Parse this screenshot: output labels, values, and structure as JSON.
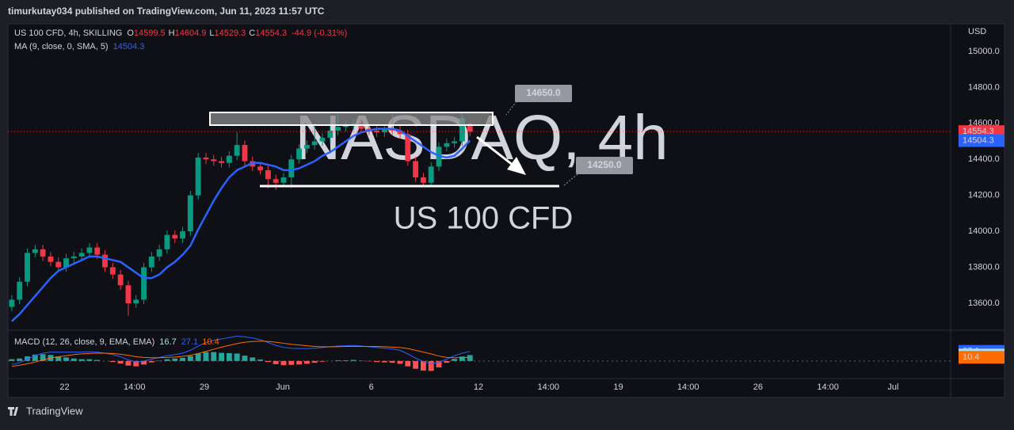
{
  "header": {
    "title": "timurkutay034 published on TradingView.com, Jun 11, 2023 11:57 UTC"
  },
  "footer": {
    "brand": "TradingView"
  },
  "chart_data": {
    "type": "candlestick",
    "title": "US 100 CFD, 4h, SKILLING",
    "watermark": [
      "NASDAQ, 4h",
      "US 100 CFD"
    ],
    "currency": "USD",
    "legend": {
      "o": "O",
      "h": "H",
      "l": "L",
      "c": "C",
      "change": "-44.9 (-0.31%)"
    },
    "up_color": "#089981",
    "down_color": "#f23645",
    "open": [
      13580,
      13620,
      13720,
      13880,
      13900,
      13860,
      13830,
      13800,
      13850,
      13860,
      13880,
      13910,
      13870,
      13800,
      13760,
      13700,
      13600,
      13620,
      13800,
      13860,
      13900,
      13980,
      13960,
      14000,
      14200,
      14410,
      14400,
      14390,
      14380,
      14420,
      14480,
      14390,
      14360,
      14340,
      14290,
      14270,
      14300,
      14400,
      14460,
      14480,
      14500,
      14520,
      14560,
      14580,
      14590,
      14600,
      14570,
      14560,
      14550,
      14570,
      14560,
      14540,
      14390,
      14300,
      14270,
      14360,
      14470,
      14490,
      14500,
      14599.5
    ],
    "high": [
      13645,
      13745,
      13905,
      13925,
      13925,
      13885,
      13855,
      13875,
      13885,
      13905,
      13935,
      13935,
      13895,
      13825,
      13785,
      13725,
      13645,
      13825,
      13885,
      13925,
      14005,
      14005,
      14025,
      14225,
      14435,
      14435,
      14425,
      14415,
      14445,
      14550,
      14505,
      14415,
      14385,
      14365,
      14315,
      14325,
      14425,
      14485,
      14505,
      14600,
      14545,
      14585,
      14660,
      14615,
      14625,
      14625,
      14595,
      14585,
      14595,
      14650,
      14585,
      14565,
      14415,
      14325,
      14385,
      14495,
      14515,
      14525,
      14660,
      14604.9
    ],
    "low": [
      13555,
      13595,
      13695,
      13855,
      13835,
      13805,
      13775,
      13775,
      13825,
      13835,
      13855,
      13845,
      13775,
      13735,
      13675,
      13530,
      13575,
      13595,
      13775,
      13835,
      13875,
      13935,
      13935,
      13975,
      14175,
      14375,
      14365,
      14355,
      14355,
      14395,
      14365,
      14335,
      14315,
      14240,
      14230,
      14245,
      14240,
      14375,
      14435,
      14455,
      14475,
      14495,
      14535,
      14555,
      14565,
      14545,
      14535,
      14525,
      14525,
      14535,
      14515,
      14365,
      14275,
      14245,
      14245,
      14335,
      14445,
      14465,
      14475,
      14529.3
    ],
    "close": [
      13620,
      13720,
      13880,
      13900,
      13860,
      13830,
      13800,
      13850,
      13860,
      13880,
      13910,
      13870,
      13800,
      13760,
      13700,
      13600,
      13620,
      13800,
      13860,
      13900,
      13980,
      13960,
      14000,
      14200,
      14410,
      14400,
      14390,
      14380,
      14420,
      14480,
      14390,
      14360,
      14340,
      14290,
      14270,
      14300,
      14400,
      14460,
      14480,
      14500,
      14520,
      14560,
      14580,
      14590,
      14600,
      14570,
      14560,
      14550,
      14570,
      14560,
      14540,
      14390,
      14300,
      14270,
      14360,
      14470,
      14490,
      14500,
      14630,
      14554.3
    ],
    "ma": {
      "name": "MA (9, close, 0, SMA, 5)",
      "color": "#2962ff",
      "values": [
        13500,
        13540,
        13590,
        13640,
        13690,
        13740,
        13780,
        13800,
        13820,
        13840,
        13860,
        13860,
        13850,
        13840,
        13830,
        13800,
        13770,
        13740,
        13740,
        13760,
        13800,
        13830,
        13870,
        13920,
        14010,
        14090,
        14170,
        14240,
        14300,
        14340,
        14360,
        14380,
        14380,
        14370,
        14360,
        14340,
        14340,
        14350,
        14370,
        14390,
        14420,
        14440,
        14470,
        14500,
        14530,
        14550,
        14560,
        14570,
        14570,
        14570,
        14560,
        14530,
        14500,
        14470,
        14440,
        14420,
        14410,
        14420,
        14460,
        14504.3
      ]
    },
    "xlim": [
      -0.5,
      120.9
    ],
    "xticks": [
      {
        "value": 6.8,
        "label": "22"
      },
      {
        "value": 15.8,
        "label": "14:00"
      },
      {
        "value": 24.8,
        "label": "29"
      },
      {
        "value": 34.9,
        "label": "Jun"
      },
      {
        "value": 46.3,
        "label": "6"
      },
      {
        "value": 60.1,
        "label": "12"
      },
      {
        "value": 69.1,
        "label": "14:00"
      },
      {
        "value": 78.1,
        "label": "19"
      },
      {
        "value": 87.1,
        "label": "14:00"
      },
      {
        "value": 96.1,
        "label": "26"
      },
      {
        "value": 105.1,
        "label": "14:00"
      },
      {
        "value": 113.5,
        "label": "Jul"
      }
    ],
    "ylim": [
      13459,
      15145
    ],
    "yticks": [
      {
        "value": 13600,
        "label": "13600.0"
      },
      {
        "value": 13800,
        "label": "13800.0"
      },
      {
        "value": 14000,
        "label": "14000.0"
      },
      {
        "value": 14200,
        "label": "14200.0"
      },
      {
        "value": 14400,
        "label": "14400.0"
      },
      {
        "value": 14600,
        "label": "14600.0"
      },
      {
        "value": 14800,
        "label": "14800.0"
      },
      {
        "value": 15000,
        "label": "15000.0"
      }
    ],
    "annotations": [
      "14650.0",
      "14250.0"
    ],
    "macd": {
      "name": "MACD (12, 26, close, 9, EMA, EMA)",
      "ylim": [
        -45,
        80
      ],
      "histogram_color": "#26a69a",
      "histogram_negative_color": "#ff5252",
      "macd_color": "#2962ff",
      "signal_color": "#ff6d00",
      "histogram": [
        5,
        7,
        13,
        18,
        19,
        17,
        13,
        10,
        7,
        5,
        5,
        3,
        0,
        -3,
        -7,
        -13,
        -15,
        -10,
        -4,
        1,
        5,
        7,
        9,
        14,
        21,
        25,
        25,
        23,
        22,
        21,
        15,
        10,
        4,
        -3,
        -9,
        -12,
        -11,
        -10,
        -8,
        -5,
        -2,
        0,
        2,
        2,
        3,
        1,
        -1,
        -3,
        -4,
        -5,
        -8,
        -15,
        -22,
        -27,
        -28,
        -18,
        -5,
        6,
        12.5,
        16.7
      ],
      "macd": [
        -10,
        -5,
        5,
        15,
        22,
        25,
        25,
        25,
        25,
        25,
        26,
        25,
        22,
        18,
        12,
        3,
        -3,
        0,
        5,
        10,
        15,
        18,
        22,
        30,
        42,
        52,
        58,
        62,
        66,
        70,
        68,
        65,
        60,
        52,
        44,
        38,
        36,
        35,
        35,
        36,
        38,
        40,
        42,
        43,
        44,
        42,
        40,
        38,
        36,
        34,
        30,
        20,
        8,
        -2,
        -8,
        -4,
        5,
        15,
        22,
        27.1
      ],
      "signal": [
        -15,
        -12,
        -8,
        -3,
        3,
        8,
        12,
        15,
        18,
        20,
        21,
        22,
        22,
        21,
        19,
        16,
        12,
        10,
        9,
        9,
        10,
        11,
        13,
        16,
        21,
        27,
        33,
        39,
        44,
        49,
        53,
        55,
        56,
        55,
        53,
        50,
        47,
        45,
        43,
        41,
        40,
        40,
        40,
        41,
        41,
        41,
        41,
        41,
        40,
        39,
        38,
        35,
        30,
        25,
        20,
        14,
        10,
        9,
        9.5,
        10.4
      ]
    }
  }
}
